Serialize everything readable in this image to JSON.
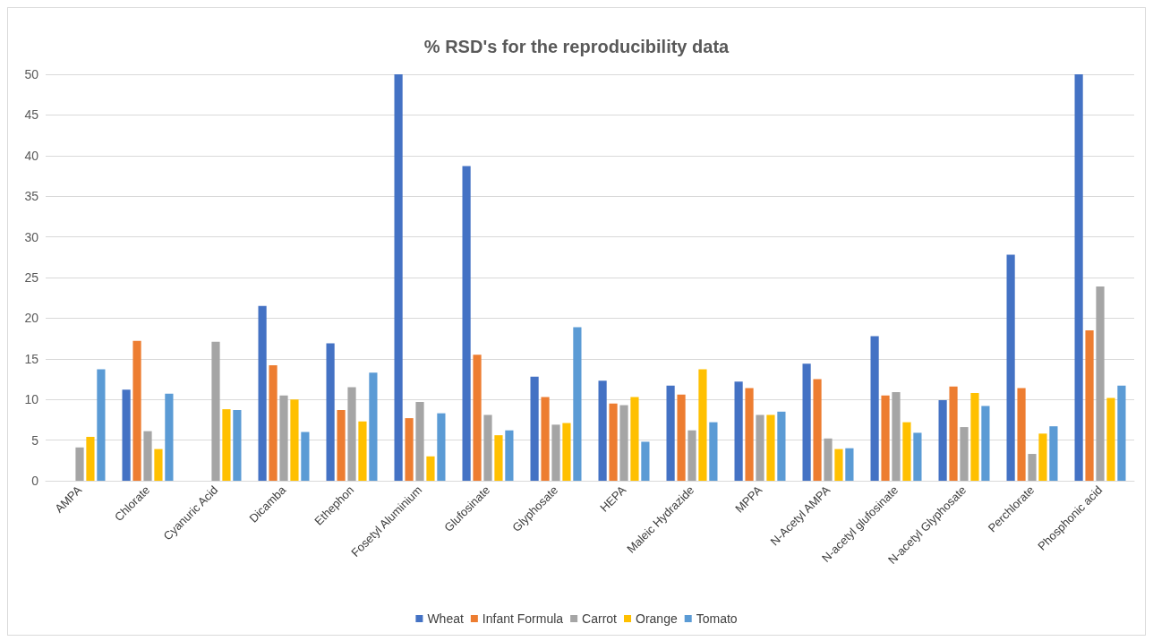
{
  "chart_data": {
    "type": "bar",
    "title": "% RSD's for the reproducibility data",
    "categories": [
      "AMPA",
      "Chlorate",
      "Cyanuric Acid",
      "Dicamba",
      "Ethephon",
      "Fosetyl Aluminium",
      "Glufosinate",
      "Glyphosate",
      "HEPA",
      "Maleic Hydrazide",
      "MPPA",
      "N-Acetyl AMPA",
      "N-acetyl glufosinate",
      "N-acetyl Glyphosate",
      "Perchlorate",
      "Phosphonic acid"
    ],
    "series": [
      {
        "name": "Wheat",
        "color": "#4472c4",
        "values": [
          null,
          11.2,
          null,
          21.5,
          16.9,
          50,
          38.7,
          12.8,
          12.3,
          11.7,
          12.2,
          14.4,
          17.8,
          9.9,
          27.8,
          50
        ]
      },
      {
        "name": "Infant Formula",
        "color": "#ed7d31",
        "values": [
          null,
          17.2,
          null,
          14.2,
          8.7,
          7.7,
          15.5,
          10.3,
          9.5,
          10.6,
          11.4,
          12.5,
          10.5,
          11.6,
          11.4,
          18.5
        ]
      },
      {
        "name": "Carrot",
        "color": "#a5a5a5",
        "values": [
          4.1,
          6.1,
          17.1,
          10.5,
          11.5,
          9.7,
          8.1,
          6.9,
          9.3,
          6.2,
          8.1,
          5.2,
          10.9,
          6.6,
          3.3,
          23.9
        ]
      },
      {
        "name": "Orange",
        "color": "#ffc000",
        "values": [
          5.4,
          3.9,
          8.8,
          10.0,
          7.3,
          3.0,
          5.6,
          7.1,
          10.3,
          13.7,
          8.1,
          3.9,
          7.2,
          10.8,
          5.8,
          10.2
        ]
      },
      {
        "name": "Tomato",
        "color": "#5b9bd5",
        "values": [
          13.7,
          10.7,
          8.7,
          6.0,
          13.3,
          8.3,
          6.2,
          18.9,
          4.8,
          7.2,
          8.5,
          4.0,
          5.9,
          9.2,
          6.7,
          11.7
        ]
      }
    ],
    "ylim": [
      0,
      50
    ],
    "yticks": [
      0,
      5,
      10,
      15,
      20,
      25,
      30,
      35,
      40,
      45,
      50
    ],
    "grid": "y",
    "legend": "bottom"
  }
}
